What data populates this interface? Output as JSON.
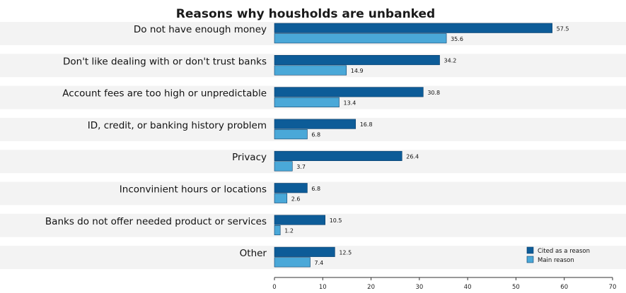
{
  "chart_data": {
    "type": "bar",
    "orientation": "horizontal",
    "title": "Reasons why housholds are unbanked",
    "xlabel": "",
    "ylabel": "",
    "categories": [
      "Do  not have enough money",
      "Don't like dealing with or don't trust banks",
      "Account fees are too high or unpredictable",
      "ID, credit, or banking history problem",
      "Privacy",
      "Inconvinient hours or locations",
      "Banks do not offer needed product or services",
      "Other"
    ],
    "series": [
      {
        "name": "Cited as a reason",
        "color": "#0d5c98",
        "values": [
          57.5,
          34.2,
          30.8,
          16.8,
          26.4,
          6.8,
          10.5,
          12.5
        ]
      },
      {
        "name": "Main reason",
        "color": "#4aa8d8",
        "values": [
          35.6,
          14.9,
          13.4,
          6.8,
          3.7,
          2.6,
          1.2,
          7.4
        ]
      }
    ],
    "xlim": [
      0,
      70
    ],
    "xticks": [
      0,
      10,
      20,
      30,
      40,
      50,
      60,
      70
    ],
    "grid": false,
    "legend": "bottom-right"
  }
}
